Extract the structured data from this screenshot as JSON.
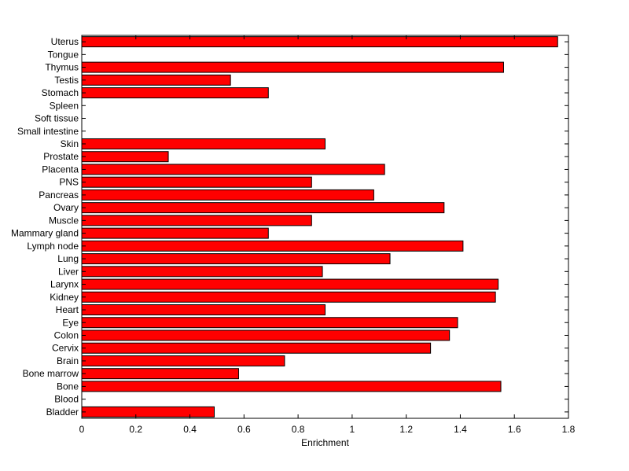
{
  "chart_data": {
    "type": "bar",
    "orientation": "horizontal",
    "title": "",
    "xlabel": "Enrichment",
    "ylabel": "",
    "xlim": [
      0,
      1.8
    ],
    "xticks": [
      "0",
      "0.2",
      "0.4",
      "0.6",
      "0.8",
      "1",
      "1.2",
      "1.4",
      "1.6",
      "1.8"
    ],
    "grid": false,
    "bar_color": "#ff0000",
    "categories": [
      "Bladder",
      "Blood",
      "Bone",
      "Bone marrow",
      "Brain",
      "Cervix",
      "Colon",
      "Eye",
      "Heart",
      "Kidney",
      "Larynx",
      "Liver",
      "Lung",
      "Lymph node",
      "Mammary gland",
      "Muscle",
      "Ovary",
      "Pancreas",
      "PNS",
      "Placenta",
      "Prostate",
      "Skin",
      "Small intestine",
      "Soft tissue",
      "Spleen",
      "Stomach",
      "Testis",
      "Thymus",
      "Tongue",
      "Uterus"
    ],
    "values": [
      0.49,
      0,
      1.55,
      0.58,
      0.75,
      1.29,
      1.36,
      1.39,
      0.9,
      1.53,
      1.54,
      0.89,
      1.14,
      1.41,
      0.69,
      0.85,
      1.34,
      1.08,
      0.85,
      1.12,
      0.32,
      0.9,
      0,
      0,
      0,
      0.69,
      0.55,
      1.56,
      0,
      1.76
    ]
  }
}
